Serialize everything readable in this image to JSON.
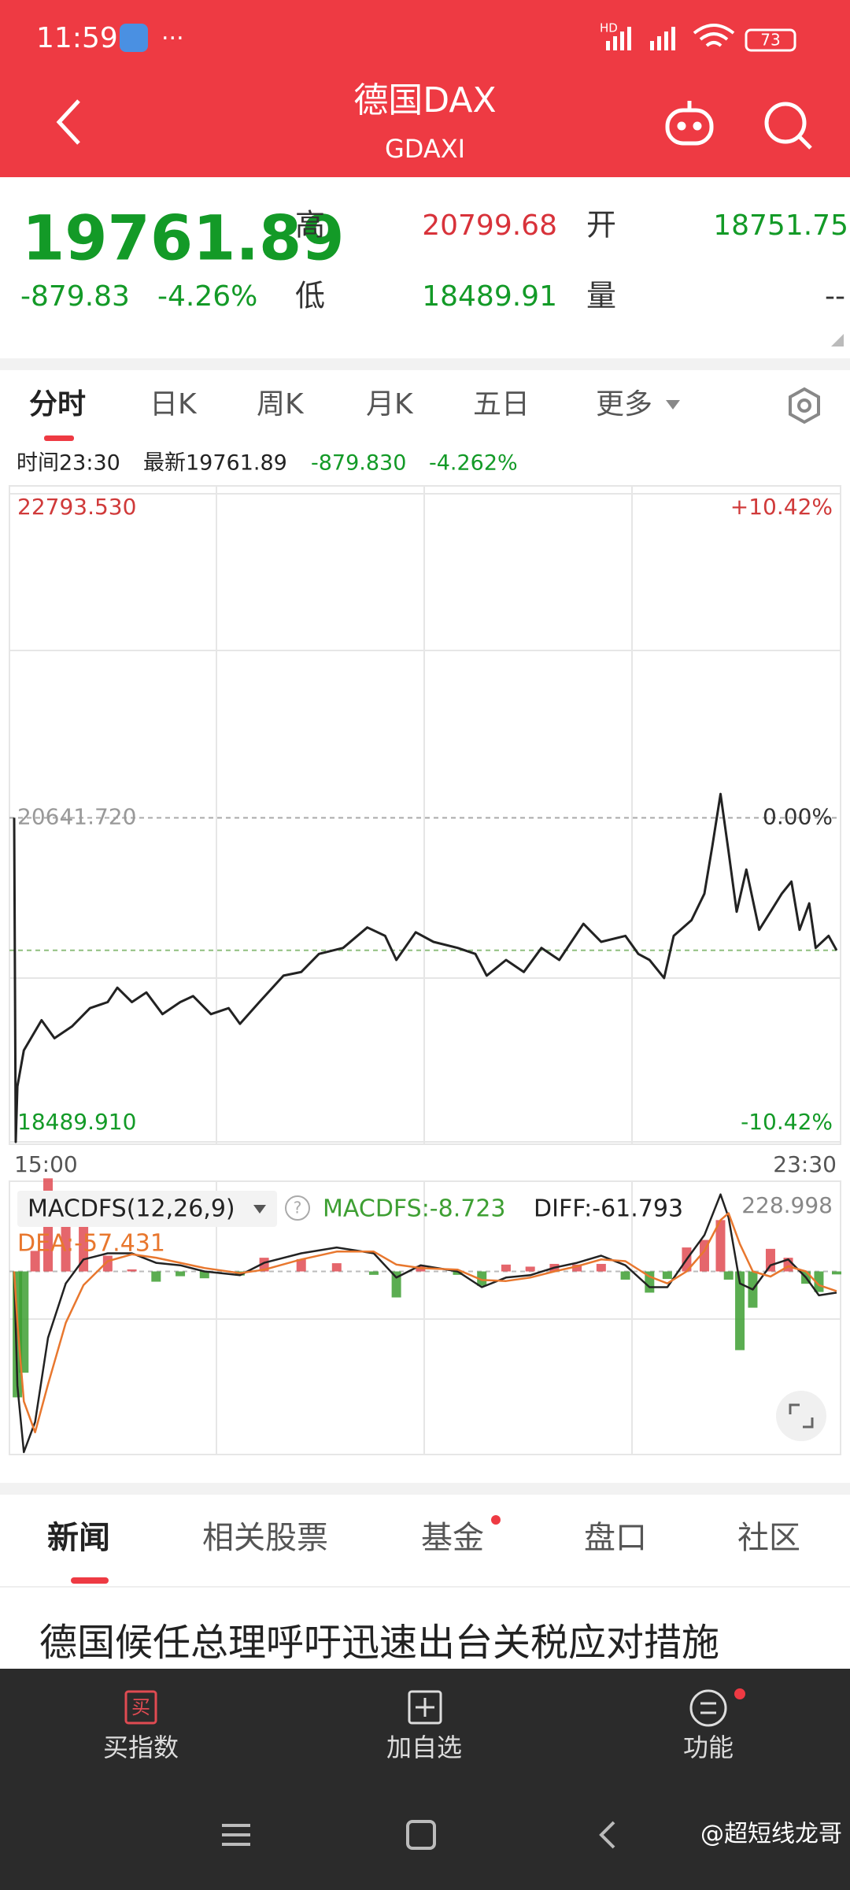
{
  "status_bar": {
    "time": "11:59",
    "network": "HD",
    "battery": "73"
  },
  "header": {
    "title": "德国DAX",
    "subtitle": "GDAXI"
  },
  "quote": {
    "price": "19761.89",
    "change": "-879.83",
    "change_pct": "-4.26%",
    "high_label": "高",
    "high": "20799.68",
    "open_label": "开",
    "open": "18751.75",
    "low_label": "低",
    "low": "18489.91",
    "volume_label": "量",
    "volume": "--"
  },
  "tabs": [
    "分时",
    "日K",
    "周K",
    "月K",
    "五日",
    "更多"
  ],
  "info_bar": {
    "time": "时间23:30",
    "latest": "最新19761.89",
    "change": "-879.830",
    "change_pct": "-4.262%"
  },
  "chart_data": [
    {
      "type": "line",
      "color": "#222222",
      "x": [
        0,
        1,
        2,
        6,
        17,
        25,
        36,
        47,
        58,
        64,
        73,
        82,
        92,
        103,
        111,
        122,
        133,
        140,
        152,
        167,
        178,
        189,
        204,
        219,
        230,
        237,
        249,
        260,
        275,
        286,
        293,
        305,
        316,
        327,
        338,
        353,
        364,
        379,
        387,
        394,
        403,
        409,
        420,
        428,
        433,
        438,
        443,
        448,
        454,
        462,
        469,
        476,
        482,
        487,
        493,
        497,
        505,
        510
      ],
      "values": [
        20642,
        18490,
        18858,
        19098,
        19298,
        19178,
        19258,
        19378,
        19418,
        19514,
        19418,
        19482,
        19338,
        19418,
        19458,
        19338,
        19378,
        19274,
        19418,
        19594,
        19618,
        19738,
        19778,
        19914,
        19858,
        19698,
        19882,
        19818,
        19778,
        19738,
        19594,
        19698,
        19618,
        19778,
        19698,
        19938,
        19818,
        19858,
        19738,
        19698,
        19578,
        19858,
        19962,
        20138,
        20458,
        20800,
        20418,
        20018,
        20298,
        19898,
        20018,
        20138,
        20218,
        19898,
        20074,
        19778,
        19858,
        19761.89
      ],
      "xlim": [
        0,
        510
      ],
      "xticks": [
        {
          "value": 0,
          "label": "15:00"
        },
        {
          "value": 510,
          "label": "23:30"
        }
      ],
      "ylim": [
        18489.91,
        22793.53
      ],
      "yticks": [
        {
          "value": 22793.53,
          "label": "22793.530"
        },
        {
          "value": 20641.72,
          "label": "20641.720"
        },
        {
          "value": 18489.91,
          "label": "18489.910"
        }
      ],
      "y2lim": [
        -10.42,
        10.42
      ],
      "y2ticks": [
        {
          "value": 10.42,
          "label": "+10.42%"
        },
        {
          "value": 0,
          "label": "0.00%"
        },
        {
          "value": -10.42,
          "label": "-10.42%"
        }
      ]
    },
    {
      "type": "macd",
      "title": "MACDFS(12,26,9)",
      "x": [
        0,
        2,
        6,
        13,
        21,
        32,
        43,
        58,
        73,
        88,
        103,
        118,
        140,
        155,
        178,
        200,
        223,
        237,
        252,
        275,
        290,
        305,
        320,
        335,
        349,
        364,
        379,
        394,
        405,
        417,
        428,
        438,
        443,
        450,
        458,
        469,
        480,
        491,
        499,
        510
      ],
      "series": [
        {
          "name": "MACDFS",
          "color": "#e04b52",
          "negative_color": "#3e9f33",
          "label": "MACDFS:-8.723",
          "values": [
            0,
            -368,
            -296,
            60,
            272,
            230,
            150,
            46,
            6,
            -30,
            -14,
            -20,
            -12,
            40,
            36,
            24,
            -10,
            -76,
            16,
            -10,
            -42,
            20,
            14,
            22,
            20,
            22,
            -24,
            -62,
            -22,
            70,
            92,
            150,
            -24,
            -230,
            -106,
            66,
            40,
            -36,
            -60,
            -8.723
          ]
        },
        {
          "name": "DIFF",
          "color": "#222222",
          "label": "DIFF:-61.793",
          "values": [
            0,
            -334,
            -528,
            -440,
            -194,
            -35,
            35,
            53,
            53,
            25,
            18,
            0,
            -11,
            25,
            53,
            70,
            53,
            -18,
            18,
            0,
            -46,
            -18,
            -11,
            11,
            25,
            46,
            18,
            -46,
            -46,
            35,
            106,
            225,
            158,
            -35,
            -53,
            18,
            35,
            -18,
            -70,
            -61.793
          ]
        },
        {
          "name": "DEA",
          "color": "#e8772e",
          "label": "DEA:-57.431",
          "values": [
            0,
            -150,
            -380,
            -470,
            -330,
            -150,
            -40,
            30,
            50,
            40,
            25,
            10,
            -5,
            5,
            35,
            58,
            58,
            20,
            10,
            5,
            -25,
            -28,
            -18,
            0,
            15,
            35,
            30,
            -15,
            -35,
            0,
            60,
            150,
            170,
            80,
            0,
            -15,
            15,
            0,
            -40,
            -57.431
          ]
        }
      ],
      "xlim": [
        0,
        510
      ],
      "ylim": [
        -535,
        228.998
      ],
      "yticks": [
        228.998
      ]
    }
  ],
  "news_tabs": [
    "新闻",
    "相关股票",
    "基金",
    "盘口",
    "社区"
  ],
  "headline": "德国候任总理呼吁迅速出台关税应对措施",
  "bottom_bar": {
    "buy_icon": "买",
    "items": [
      "买指数",
      "加自选",
      "功能"
    ]
  },
  "watermark": "@超短线龙哥"
}
